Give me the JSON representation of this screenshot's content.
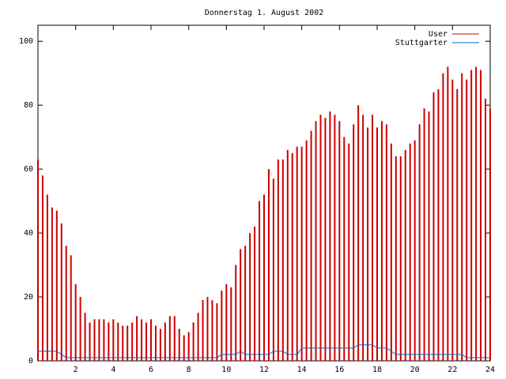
{
  "chart_data": {
    "type": "impulse-line",
    "title": "Donnerstag 1. August 2002",
    "x": [
      0,
      0.25,
      0.5,
      0.75,
      1,
      1.25,
      1.5,
      1.75,
      2,
      2.25,
      2.5,
      2.75,
      3,
      3.25,
      3.5,
      3.75,
      4,
      4.25,
      4.5,
      4.75,
      5,
      5.25,
      5.5,
      5.75,
      6,
      6.25,
      6.5,
      6.75,
      7,
      7.25,
      7.5,
      7.75,
      8,
      8.25,
      8.5,
      8.75,
      9,
      9.25,
      9.5,
      9.75,
      10,
      10.25,
      10.5,
      10.75,
      11,
      11.25,
      11.5,
      11.75,
      12,
      12.25,
      12.5,
      12.75,
      13,
      13.25,
      13.5,
      13.75,
      14,
      14.25,
      14.5,
      14.75,
      15,
      15.25,
      15.5,
      15.75,
      16,
      16.25,
      16.5,
      16.75,
      17,
      17.25,
      17.5,
      17.75,
      18,
      18.25,
      18.5,
      18.75,
      19,
      19.25,
      19.5,
      19.75,
      20,
      20.25,
      20.5,
      20.75,
      21,
      21.25,
      21.5,
      21.75,
      22,
      22.25,
      22.5,
      22.75,
      23,
      23.25,
      23.5,
      23.75,
      24
    ],
    "series": [
      {
        "name": "User",
        "color": "#cc0000",
        "style": "impulses",
        "values": [
          63,
          58,
          52,
          48,
          47,
          43,
          36,
          33,
          24,
          20,
          15,
          12,
          13,
          13,
          13,
          12,
          13,
          12,
          11,
          11,
          12,
          14,
          13,
          12,
          13,
          11,
          10,
          12,
          14,
          14,
          10,
          8,
          9,
          12,
          15,
          19,
          20,
          19,
          18,
          22,
          24,
          23,
          30,
          35,
          36,
          40,
          42,
          50,
          52,
          60,
          57,
          63,
          63,
          66,
          65,
          67,
          67,
          69,
          72,
          75,
          77,
          76,
          78,
          77,
          75,
          70,
          68,
          74,
          80,
          77,
          73,
          77,
          73,
          75,
          74,
          68,
          64,
          64,
          66,
          68,
          69,
          74,
          79,
          78,
          84,
          85,
          90,
          92,
          88,
          85,
          90,
          88,
          91,
          92,
          91,
          82,
          79
        ]
      },
      {
        "name": "Stuttgarter",
        "color": "#0066cc",
        "style": "line",
        "values": [
          3,
          3,
          3,
          3,
          3,
          2,
          1,
          1,
          1,
          1,
          1,
          1,
          1,
          1,
          1,
          1,
          1,
          1,
          1,
          1,
          1,
          1,
          1,
          1,
          1,
          1,
          1,
          1,
          1,
          1,
          1,
          1,
          1,
          1,
          1,
          1,
          1,
          1,
          1,
          2,
          2,
          2,
          2,
          3,
          2,
          2,
          2,
          2,
          2,
          2,
          3,
          3,
          3,
          2,
          2,
          2,
          4,
          4,
          4,
          4,
          4,
          4,
          4,
          4,
          4,
          4,
          4,
          4,
          5,
          5,
          5,
          5,
          4,
          4,
          4,
          3,
          2,
          2,
          2,
          2,
          2,
          2,
          2,
          2,
          2,
          2,
          2,
          2,
          2,
          2,
          2,
          1,
          1,
          1,
          1,
          1,
          1
        ]
      }
    ],
    "xlim": [
      0,
      24
    ],
    "xticks": [
      2,
      4,
      6,
      8,
      10,
      12,
      14,
      16,
      18,
      20,
      22,
      24
    ],
    "ylim": [
      0,
      105
    ],
    "yticks": [
      0,
      20,
      40,
      60,
      80,
      100
    ],
    "legend": "top-right"
  }
}
